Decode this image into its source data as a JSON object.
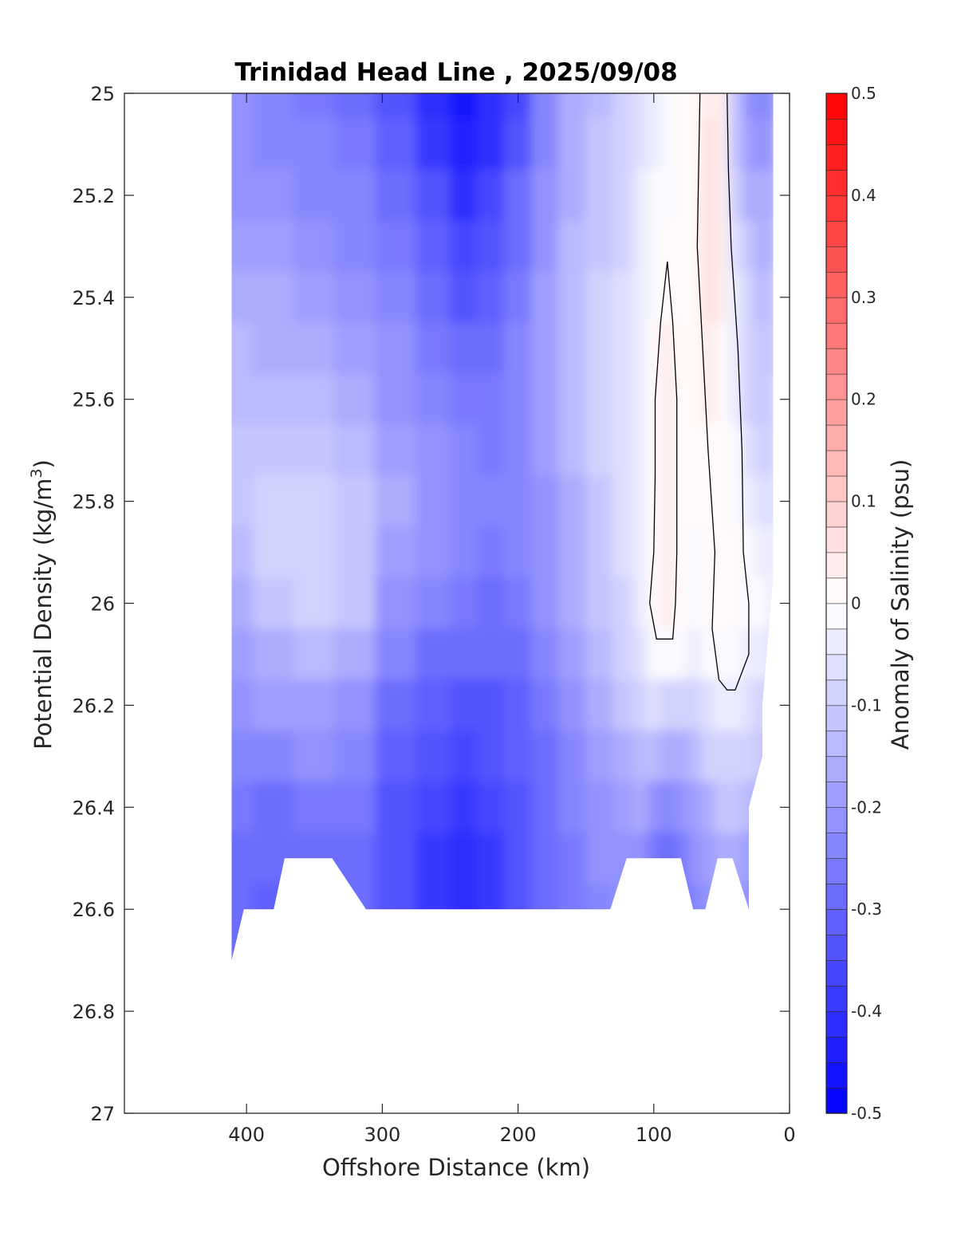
{
  "chart_data": {
    "type": "heatmap",
    "title": "Trinidad Head Line , 2025/09/08",
    "xlabel": "Offshore Distance (km)",
    "ylabel": "Potential Density (kg/m",
    "ylabel_superscript": "3",
    "ylabel_suffix": ")",
    "colorbar_label": "Anomaly of Salinity (psu)",
    "xlim": [
      490,
      0
    ],
    "ylim": [
      25,
      27
    ],
    "x_reversed": true,
    "y_reversed": true,
    "x_ticks": [
      400,
      300,
      200,
      100,
      0
    ],
    "x_tick_labels": [
      "400",
      "300",
      "200",
      "100",
      "0"
    ],
    "y_ticks": [
      25,
      25.2,
      25.4,
      25.6,
      25.8,
      26,
      26.2,
      26.4,
      26.6,
      26.8,
      27
    ],
    "y_tick_labels": [
      "25",
      "25.2",
      "25.4",
      "25.6",
      "25.8",
      "26",
      "26.2",
      "26.4",
      "26.6",
      "26.8",
      "27"
    ],
    "colorbar_limits": [
      -0.5,
      0.5
    ],
    "colorbar_levels": 40,
    "colorbar_ticks": [
      0.5,
      0.4,
      0.3,
      0.2,
      0.1,
      0,
      -0.1,
      -0.2,
      -0.3,
      -0.4,
      -0.5
    ],
    "colorbar_tick_labels": [
      "0.5",
      "0.4",
      "0.3",
      "0.2",
      "0.1",
      "0",
      "-0.1",
      "-0.2",
      "-0.3",
      "-0.4",
      "-0.5"
    ],
    "colormap": {
      "negative": "#0000ff",
      "zero": "#ffffff",
      "positive": "#ff0000"
    },
    "grid": false,
    "x": [
      410,
      380,
      350,
      320,
      290,
      260,
      240,
      220,
      200,
      180,
      160,
      140,
      120,
      110,
      100,
      90,
      80,
      70,
      60,
      50,
      40,
      30,
      20,
      12
    ],
    "y": [
      25.0,
      25.1,
      25.2,
      25.3,
      25.4,
      25.5,
      25.6,
      25.7,
      25.8,
      25.9,
      26.0,
      26.1,
      26.2,
      26.3,
      26.4,
      26.5,
      26.6,
      26.7
    ],
    "z": [
      [
        -0.22,
        -0.24,
        -0.26,
        -0.28,
        -0.33,
        -0.4,
        -0.46,
        -0.42,
        -0.36,
        -0.25,
        -0.17,
        -0.13,
        -0.1,
        -0.07,
        -0.03,
        -0.01,
        0.0,
        0.02,
        0.04,
        0.03,
        -0.12,
        -0.2,
        -0.24,
        -0.2
      ],
      [
        -0.21,
        -0.23,
        -0.25,
        -0.27,
        -0.32,
        -0.38,
        -0.44,
        -0.4,
        -0.33,
        -0.23,
        -0.16,
        -0.12,
        -0.09,
        -0.06,
        -0.03,
        -0.01,
        0.0,
        0.02,
        0.05,
        0.03,
        -0.11,
        -0.18,
        -0.2,
        -0.18
      ],
      [
        -0.2,
        -0.21,
        -0.23,
        -0.25,
        -0.3,
        -0.35,
        -0.4,
        -0.37,
        -0.3,
        -0.21,
        -0.15,
        -0.11,
        -0.08,
        -0.05,
        -0.02,
        -0.01,
        0.0,
        0.02,
        0.05,
        0.04,
        -0.08,
        -0.15,
        -0.17,
        -0.15
      ],
      [
        -0.18,
        -0.19,
        -0.21,
        -0.23,
        -0.27,
        -0.32,
        -0.37,
        -0.34,
        -0.28,
        -0.2,
        -0.14,
        -0.11,
        -0.08,
        -0.04,
        -0.01,
        0.0,
        0.0,
        0.02,
        0.05,
        0.04,
        -0.06,
        -0.12,
        -0.15,
        -0.14
      ],
      [
        -0.16,
        -0.17,
        -0.19,
        -0.21,
        -0.25,
        -0.3,
        -0.34,
        -0.31,
        -0.26,
        -0.19,
        -0.14,
        -0.1,
        -0.07,
        -0.03,
        -0.01,
        0.02,
        0.0,
        0.02,
        0.05,
        0.03,
        -0.05,
        -0.1,
        -0.13,
        -0.12
      ],
      [
        -0.14,
        -0.15,
        -0.16,
        -0.18,
        -0.22,
        -0.26,
        -0.3,
        -0.29,
        -0.25,
        -0.19,
        -0.13,
        -0.1,
        -0.07,
        -0.03,
        0.0,
        0.03,
        0.0,
        0.02,
        0.04,
        0.02,
        -0.04,
        -0.09,
        -0.12,
        -0.11
      ],
      [
        -0.13,
        -0.13,
        -0.14,
        -0.16,
        -0.2,
        -0.24,
        -0.27,
        -0.27,
        -0.24,
        -0.19,
        -0.13,
        -0.1,
        -0.07,
        -0.03,
        0.01,
        0.04,
        0.0,
        0.01,
        0.03,
        0.01,
        -0.03,
        -0.08,
        -0.11,
        -0.1
      ],
      [
        -0.12,
        -0.11,
        -0.11,
        -0.13,
        -0.18,
        -0.22,
        -0.25,
        -0.26,
        -0.24,
        -0.19,
        -0.14,
        -0.1,
        -0.07,
        -0.03,
        0.01,
        0.04,
        0.0,
        0.0,
        0.02,
        0.01,
        -0.02,
        -0.06,
        -0.09,
        -0.09
      ],
      [
        -0.12,
        -0.1,
        -0.09,
        -0.11,
        -0.17,
        -0.21,
        -0.24,
        -0.25,
        -0.24,
        -0.2,
        -0.15,
        -0.11,
        -0.07,
        -0.03,
        0.01,
        0.04,
        0.0,
        0.0,
        0.01,
        0.0,
        -0.01,
        -0.04,
        -0.06,
        -0.07
      ],
      [
        -0.13,
        -0.1,
        -0.09,
        -0.11,
        -0.18,
        -0.22,
        -0.25,
        -0.26,
        -0.25,
        -0.21,
        -0.16,
        -0.11,
        -0.07,
        -0.03,
        0.01,
        0.04,
        0.0,
        -0.01,
        0.0,
        0.0,
        0.0,
        -0.02,
        -0.04,
        -0.05
      ],
      [
        -0.15,
        -0.12,
        -0.1,
        -0.12,
        -0.2,
        -0.24,
        -0.27,
        -0.28,
        -0.26,
        -0.22,
        -0.17,
        -0.12,
        -0.08,
        -0.04,
        0.01,
        0.03,
        0.0,
        -0.01,
        0.0,
        0.0,
        0.0,
        -0.01,
        -0.02,
        -0.03
      ],
      [
        -0.18,
        -0.16,
        -0.14,
        -0.16,
        -0.24,
        -0.28,
        -0.3,
        -0.3,
        -0.28,
        -0.24,
        -0.19,
        -0.14,
        -0.1,
        -0.06,
        -0.02,
        -0.01,
        -0.02,
        -0.04,
        -0.02,
        -0.01,
        -0.01,
        -0.03,
        -0.05,
        -0.06
      ],
      [
        -0.21,
        -0.19,
        -0.18,
        -0.2,
        -0.28,
        -0.32,
        -0.34,
        -0.33,
        -0.31,
        -0.27,
        -0.22,
        -0.17,
        -0.12,
        -0.09,
        -0.07,
        -0.09,
        -0.1,
        -0.08,
        -0.06,
        -0.04,
        -0.04,
        -0.06,
        -0.08,
        -0.09
      ],
      [
        -0.24,
        -0.23,
        -0.22,
        -0.24,
        -0.31,
        -0.35,
        -0.37,
        -0.35,
        -0.32,
        -0.28,
        -0.24,
        -0.19,
        -0.15,
        -0.13,
        -0.14,
        -0.17,
        -0.16,
        -0.13,
        -0.1,
        -0.08,
        -0.08,
        -0.1,
        -0.12,
        -0.13
      ],
      [
        -0.27,
        -0.28,
        -0.26,
        -0.27,
        -0.33,
        -0.37,
        -0.39,
        -0.37,
        -0.33,
        -0.29,
        -0.25,
        -0.21,
        -0.18,
        -0.17,
        -0.21,
        -0.25,
        -0.22,
        -0.18,
        -0.15,
        -0.12,
        -0.12,
        -0.14,
        -0.16,
        -0.17
      ],
      [
        -0.29,
        -0.3,
        -0.28,
        -0.29,
        -0.34,
        -0.38,
        -0.4,
        -0.38,
        -0.34,
        -0.3,
        -0.26,
        -0.22,
        -0.2,
        -0.21,
        -0.26,
        -0.3,
        -0.27,
        -0.22,
        -0.19,
        -0.16,
        -0.16,
        -0.18,
        -0.2,
        -0.21
      ],
      [
        -0.3,
        -0.31,
        -0.29,
        -0.3,
        -0.35,
        -0.38,
        -0.4,
        -0.38,
        -0.34,
        -0.3,
        -0.26,
        -0.23,
        -0.21,
        -0.23,
        -0.28,
        -0.32,
        -0.29,
        -0.24,
        -0.21,
        -0.18,
        -0.18,
        -0.2,
        -0.22,
        -0.23
      ],
      [
        -0.3,
        -0.31,
        -0.29,
        -0.3,
        -0.35,
        -0.38,
        -0.4,
        -0.38,
        -0.34,
        -0.3,
        -0.26,
        -0.23,
        -0.21,
        -0.23,
        -0.28,
        -0.32,
        -0.29,
        -0.24,
        -0.21,
        -0.18,
        -0.18,
        -0.2,
        -0.22,
        -0.23
      ]
    ],
    "data_bottom_boundary": [
      [
        411,
        26.7
      ],
      [
        402,
        26.6
      ],
      [
        380,
        26.6
      ],
      [
        372,
        26.5
      ],
      [
        337,
        26.5
      ],
      [
        312,
        26.6
      ],
      [
        132,
        26.6
      ],
      [
        120,
        26.5
      ],
      [
        80,
        26.5
      ],
      [
        71,
        26.6
      ],
      [
        62,
        26.6
      ],
      [
        53,
        26.5
      ],
      [
        42,
        26.5
      ],
      [
        30,
        26.6
      ],
      [
        30,
        26.4
      ],
      [
        20,
        26.3
      ],
      [
        20,
        26.2
      ],
      [
        12,
        25.95
      ],
      [
        12,
        25.0
      ]
    ],
    "zero_contours": [
      [
        [
          90,
          25.33
        ],
        [
          86,
          25.45
        ],
        [
          83,
          25.6
        ],
        [
          83,
          25.75
        ],
        [
          83,
          25.9
        ],
        [
          84,
          26.0
        ],
        [
          86,
          26.07
        ],
        [
          98,
          26.07
        ],
        [
          103,
          26.0
        ],
        [
          100,
          25.9
        ],
        [
          99,
          25.75
        ],
        [
          99,
          25.6
        ],
        [
          95,
          25.45
        ],
        [
          90,
          25.33
        ]
      ],
      [
        [
          66,
          25.0
        ],
        [
          67,
          25.15
        ],
        [
          68,
          25.3
        ],
        [
          64,
          25.5
        ],
        [
          60,
          25.7
        ],
        [
          55,
          25.9
        ],
        [
          57,
          26.05
        ],
        [
          52,
          26.15
        ],
        [
          46,
          26.17
        ],
        [
          40,
          26.17
        ],
        [
          30,
          26.1
        ],
        [
          30,
          26.0
        ],
        [
          34,
          25.9
        ],
        [
          35,
          25.7
        ],
        [
          38,
          25.5
        ],
        [
          43,
          25.3
        ],
        [
          45,
          25.15
        ],
        [
          46,
          25.0
        ]
      ]
    ]
  }
}
